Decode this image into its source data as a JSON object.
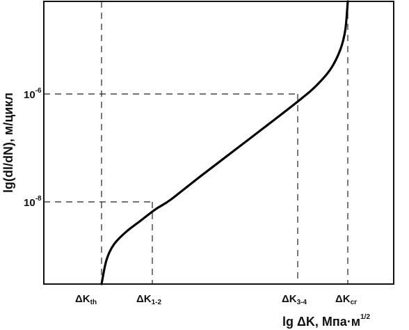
{
  "chart_data": {
    "type": "line",
    "xlabel": "lg ΔK, Мпа·м",
    "xlabel_sup": "1/2",
    "ylabel": "lg(dl/dN), м/цикл",
    "y_scale": "log",
    "y_ticks": [
      {
        "base": "10",
        "exp": "-6",
        "value": 1e-06
      },
      {
        "base": "10",
        "exp": "-8",
        "value": 1e-08
      }
    ],
    "x_ticks": [
      {
        "main": "ΔK",
        "sub": "th"
      },
      {
        "main": "ΔK",
        "sub": "1-2"
      },
      {
        "main": "ΔK",
        "sub": "3-4"
      },
      {
        "main": "ΔK",
        "sub": "cr"
      }
    ],
    "series": [
      {
        "color": "#000000",
        "points": [
          [
            0.0,
            0.0
          ],
          [
            0.02,
            0.085
          ],
          [
            0.05,
            0.14
          ],
          [
            0.1,
            0.185
          ],
          [
            0.16,
            0.225
          ],
          [
            0.22,
            0.265
          ],
          [
            0.28,
            0.298
          ],
          [
            0.4,
            0.38
          ],
          [
            0.55,
            0.48
          ],
          [
            0.7,
            0.58
          ],
          [
            0.81,
            0.655
          ],
          [
            0.87,
            0.7
          ],
          [
            0.93,
            0.76
          ],
          [
            0.97,
            0.83
          ],
          [
            0.99,
            0.9
          ],
          [
            1.0,
            1.0
          ]
        ]
      }
    ],
    "dashed_guides": [
      "ΔK_th",
      "ΔK_1-2",
      "ΔK_3-4",
      "ΔK_cr",
      "10^-6",
      "10^-8"
    ],
    "grid": false,
    "legend": "none"
  }
}
